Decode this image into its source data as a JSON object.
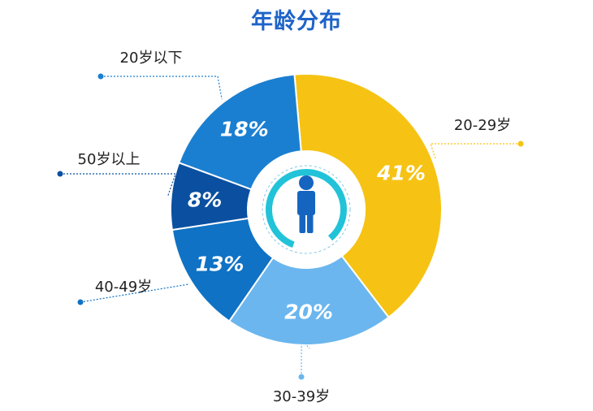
{
  "chart_data": {
    "type": "pie",
    "title": "年龄分布",
    "donut": true,
    "slices": [
      {
        "label": "20-29岁",
        "value": 41,
        "display": "41%",
        "color": "#f6c314"
      },
      {
        "label": "30-39岁",
        "value": 20,
        "display": "20%",
        "color": "#6bb6ee"
      },
      {
        "label": "40-49岁",
        "value": 13,
        "display": "13%",
        "color": "#0f72c4"
      },
      {
        "label": "50岁以上",
        "value": 8,
        "display": "8%",
        "color": "#0b4fa0"
      },
      {
        "label": "20岁以下",
        "value": 18,
        "display": "18%",
        "color": "#1b7fd1"
      }
    ],
    "center_icon": "person-icon",
    "center_ring_color": "#22c3d8"
  }
}
